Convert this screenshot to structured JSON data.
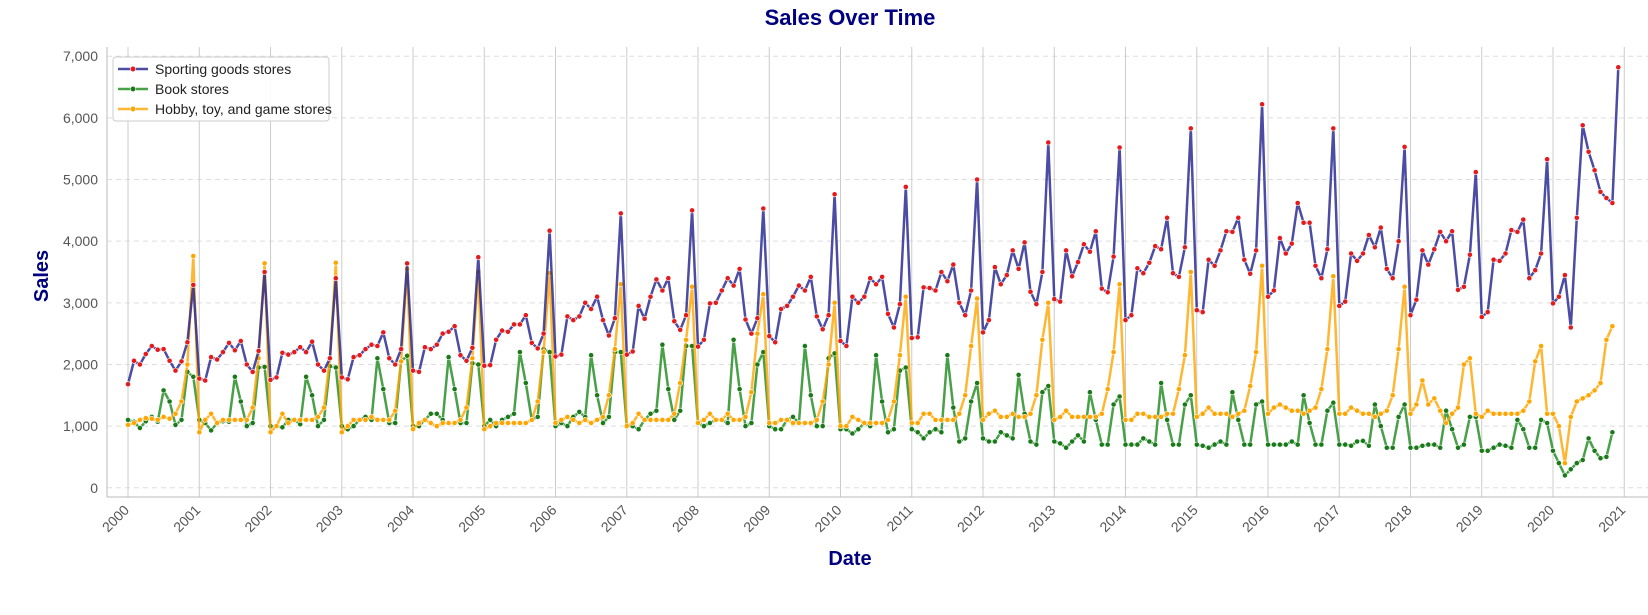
{
  "chart_data": {
    "type": "line",
    "title": "Sales Over Time",
    "xlabel": "Date",
    "ylabel": "Sales",
    "x_range": [
      "1999-09-15",
      "2021-05-01"
    ],
    "ylim": [
      -150,
      7150
    ],
    "y_ticks": [
      0,
      1000,
      2000,
      3000,
      4000,
      5000,
      6000,
      7000
    ],
    "y_tick_labels": [
      "0",
      "1,000",
      "2,000",
      "3,000",
      "4,000",
      "5,000",
      "6,000",
      "7,000"
    ],
    "x_tick_labels": [
      "2000",
      "2001",
      "2002",
      "2003",
      "2004",
      "2005",
      "2006",
      "2007",
      "2008",
      "2009",
      "2010",
      "2011",
      "2012",
      "2013",
      "2014",
      "2015",
      "2016",
      "2017",
      "2018",
      "2019",
      "2020",
      "2021"
    ],
    "grid": {
      "horizontal": "dashed",
      "vertical": "solid"
    },
    "legend_position": "top-left",
    "x_start": "2000-01",
    "x_step": "month",
    "series": [
      {
        "name": "Sporting goods stores",
        "color": "#1f1f8f",
        "marker_color": "#e41a1c",
        "values": [
          1680,
          2060,
          2000,
          2170,
          2300,
          2240,
          2250,
          2060,
          1900,
          2050,
          2360,
          3290,
          1770,
          1740,
          2120,
          2080,
          2200,
          2350,
          2230,
          2380,
          2000,
          1880,
          2220,
          3500,
          1750,
          1790,
          2190,
          2160,
          2200,
          2280,
          2200,
          2370,
          2000,
          1900,
          2100,
          3400,
          1790,
          1760,
          2120,
          2150,
          2250,
          2320,
          2300,
          2520,
          2100,
          2000,
          2250,
          3640,
          1900,
          1880,
          2280,
          2250,
          2320,
          2500,
          2530,
          2620,
          2150,
          2060,
          2270,
          3740,
          1980,
          1990,
          2400,
          2550,
          2530,
          2650,
          2650,
          2800,
          2350,
          2260,
          2500,
          4170,
          2130,
          2160,
          2780,
          2720,
          2780,
          3000,
          2900,
          3100,
          2720,
          2470,
          2750,
          4450,
          2160,
          2210,
          2950,
          2740,
          3100,
          3380,
          3200,
          3400,
          2700,
          2560,
          2800,
          4500,
          2290,
          2400,
          2990,
          3000,
          3200,
          3400,
          3280,
          3550,
          2730,
          2500,
          2750,
          4530,
          2460,
          2360,
          2900,
          2950,
          3100,
          3280,
          3200,
          3420,
          2780,
          2570,
          2800,
          4760,
          2380,
          2300,
          3100,
          3000,
          3100,
          3400,
          3300,
          3420,
          2820,
          2600,
          2980,
          4880,
          2430,
          2440,
          3250,
          3240,
          3200,
          3500,
          3350,
          3620,
          3000,
          2800,
          3200,
          5000,
          2520,
          2720,
          3580,
          3300,
          3450,
          3850,
          3550,
          3980,
          3180,
          2980,
          3500,
          5600,
          3060,
          3020,
          3850,
          3430,
          3660,
          3950,
          3830,
          4160,
          3230,
          3170,
          3750,
          5520,
          2720,
          2800,
          3560,
          3480,
          3650,
          3920,
          3870,
          4380,
          3480,
          3420,
          3900,
          5830,
          2880,
          2850,
          3700,
          3600,
          3850,
          4160,
          4150,
          4380,
          3700,
          3470,
          3850,
          6220,
          3100,
          3200,
          4050,
          3800,
          3960,
          4620,
          4300,
          4300,
          3600,
          3400,
          3870,
          5830,
          2950,
          3020,
          3800,
          3680,
          3800,
          4100,
          3900,
          4220,
          3550,
          3400,
          4000,
          5530,
          2800,
          3050,
          3850,
          3620,
          3870,
          4150,
          4000,
          4160,
          3210,
          3260,
          3780,
          5120,
          2770,
          2850,
          3700,
          3680,
          3800,
          4180,
          4150,
          4350,
          3400,
          3530,
          3800,
          5330,
          2990,
          3100,
          3450,
          2600,
          4380,
          5880,
          5450,
          5150,
          4800,
          4700,
          4620,
          6820
        ]
      },
      {
        "name": "Book stores",
        "color": "#1a8a1a",
        "marker_color": "#1a7a1a",
        "values": [
          1100,
          1070,
          970,
          1080,
          1150,
          1070,
          1580,
          1400,
          1020,
          1100,
          1880,
          1800,
          1100,
          1050,
          930,
          1050,
          1080,
          1070,
          1800,
          1400,
          1000,
          1050,
          1950,
          1960,
          1000,
          1000,
          980,
          1100,
          1100,
          1030,
          1800,
          1500,
          1000,
          1100,
          1970,
          1950,
          1000,
          950,
          1000,
          1100,
          1150,
          1100,
          2100,
          1600,
          1050,
          1050,
          2050,
          2140,
          1000,
          1000,
          1100,
          1200,
          1200,
          1100,
          2120,
          1600,
          1050,
          1050,
          2020,
          2000,
          1000,
          1100,
          1000,
          1100,
          1150,
          1200,
          2200,
          1700,
          1100,
          1150,
          2250,
          2200,
          1000,
          1050,
          1000,
          1150,
          1230,
          1150,
          2150,
          1500,
          1050,
          1150,
          2200,
          2200,
          1000,
          1000,
          950,
          1100,
          1200,
          1250,
          2320,
          1600,
          1100,
          1250,
          2300,
          2300,
          1050,
          1000,
          1050,
          1100,
          1100,
          1050,
          2400,
          1600,
          1000,
          1050,
          2000,
          2200,
          1000,
          950,
          950,
          1100,
          1150,
          1050,
          2300,
          1500,
          1000,
          1000,
          2100,
          2180,
          950,
          950,
          880,
          950,
          1050,
          1000,
          2150,
          1400,
          900,
          950,
          1900,
          1950,
          950,
          900,
          800,
          900,
          950,
          900,
          2150,
          1300,
          750,
          800,
          1400,
          1700,
          800,
          750,
          750,
          900,
          850,
          800,
          1830,
          1200,
          750,
          700,
          1550,
          1650,
          750,
          720,
          650,
          750,
          850,
          750,
          1550,
          1100,
          700,
          700,
          1350,
          1480,
          700,
          700,
          700,
          800,
          750,
          700,
          1700,
          1100,
          700,
          700,
          1350,
          1500,
          700,
          680,
          650,
          700,
          750,
          700,
          1550,
          1100,
          700,
          700,
          1350,
          1400,
          700,
          700,
          700,
          700,
          750,
          700,
          1500,
          1050,
          700,
          700,
          1250,
          1380,
          700,
          700,
          680,
          750,
          760,
          680,
          1350,
          1000,
          650,
          650,
          1150,
          1350,
          650,
          650,
          680,
          700,
          700,
          650,
          1250,
          950,
          650,
          700,
          1150,
          1150,
          600,
          600,
          650,
          700,
          680,
          650,
          1100,
          950,
          650,
          650,
          1100,
          1050,
          600,
          400,
          200,
          300,
          400,
          450,
          800,
          600,
          480,
          500,
          900
        ]
      },
      {
        "name": "Hobby, toy, and game stores",
        "color": "#ffa500",
        "marker_color": "#ffa500",
        "values": [
          1020,
          1050,
          1100,
          1130,
          1120,
          1100,
          1150,
          1120,
          1200,
          1400,
          2000,
          3760,
          900,
          1100,
          1200,
          1050,
          1100,
          1100,
          1100,
          1100,
          1100,
          1300,
          2100,
          3640,
          900,
          1000,
          1200,
          1050,
          1100,
          1100,
          1100,
          1100,
          1150,
          1300,
          2100,
          3650,
          900,
          1000,
          1100,
          1100,
          1100,
          1150,
          1100,
          1100,
          1100,
          1250,
          2050,
          3550,
          950,
          1050,
          1100,
          1050,
          1000,
          1050,
          1050,
          1050,
          1100,
          1300,
          2100,
          3500,
          950,
          1000,
          1050,
          1050,
          1050,
          1050,
          1050,
          1050,
          1100,
          1400,
          2200,
          3480,
          1050,
          1100,
          1150,
          1100,
          1050,
          1100,
          1050,
          1100,
          1150,
          1500,
          2250,
          3300,
          1000,
          1050,
          1200,
          1100,
          1100,
          1100,
          1100,
          1100,
          1200,
          1700,
          2400,
          3260,
          1050,
          1100,
          1200,
          1100,
          1100,
          1200,
          1100,
          1100,
          1150,
          1550,
          2500,
          3140,
          1050,
          1050,
          1100,
          1100,
          1050,
          1050,
          1050,
          1050,
          1100,
          1400,
          2000,
          3000,
          1000,
          1000,
          1150,
          1100,
          1050,
          1050,
          1050,
          1050,
          1100,
          1400,
          2150,
          3100,
          1050,
          1050,
          1200,
          1200,
          1100,
          1100,
          1100,
          1100,
          1200,
          1500,
          2300,
          3070,
          1100,
          1200,
          1250,
          1150,
          1150,
          1200,
          1150,
          1150,
          1200,
          1500,
          2400,
          3000,
          1100,
          1150,
          1250,
          1150,
          1150,
          1150,
          1150,
          1150,
          1200,
          1600,
          2200,
          3300,
          1100,
          1100,
          1200,
          1200,
          1150,
          1150,
          1150,
          1200,
          1200,
          1600,
          2150,
          3500,
          1150,
          1200,
          1300,
          1200,
          1200,
          1200,
          1150,
          1200,
          1250,
          1650,
          2200,
          3600,
          1200,
          1300,
          1350,
          1300,
          1250,
          1250,
          1200,
          1250,
          1300,
          1600,
          2250,
          3430,
          1200,
          1200,
          1300,
          1250,
          1200,
          1200,
          1150,
          1200,
          1250,
          1500,
          2250,
          3260,
          1200,
          1350,
          1740,
          1350,
          1450,
          1250,
          1050,
          1200,
          1300,
          2000,
          2100,
          1200,
          1150,
          1250,
          1200,
          1200,
          1200,
          1200,
          1200,
          1250,
          1400,
          2050,
          2300,
          1200,
          1200,
          1000,
          400,
          1150,
          1400,
          1450,
          1500,
          1580,
          1700,
          2400,
          2620
        ]
      }
    ]
  }
}
